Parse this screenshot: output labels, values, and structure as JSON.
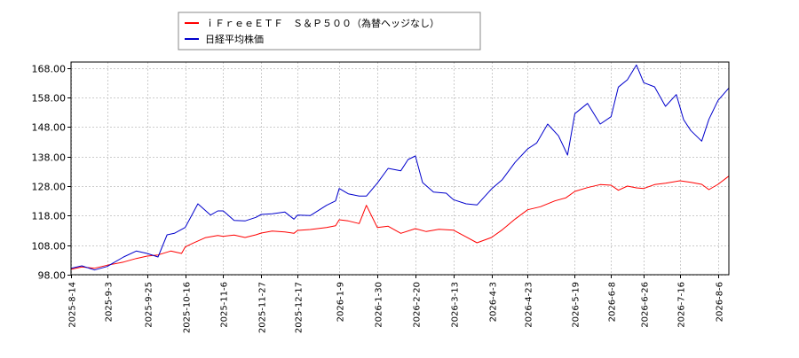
{
  "chart_data": {
    "type": "line",
    "title": "",
    "xlabel": "",
    "ylabel": "",
    "ylim": [
      98,
      170
    ],
    "y_ticks": [
      98,
      108,
      118,
      128,
      138,
      148,
      158,
      168
    ],
    "y_tick_labels": [
      "98.00",
      "108.00",
      "118.00",
      "128.00",
      "138.00",
      "148.00",
      "158.00",
      "168.00"
    ],
    "x_range": [
      "2025-08-14",
      "2026-08-12"
    ],
    "x_ticks": [
      "2025-08-14",
      "2025-09-03",
      "2025-09-25",
      "2025-10-16",
      "2025-11-06",
      "2025-11-27",
      "2025-12-17",
      "2026-01-09",
      "2026-01-30",
      "2026-02-20",
      "2026-03-13",
      "2026-04-03",
      "2026-04-23",
      "2026-05-19",
      "2026-06-08",
      "2026-06-26",
      "2026-07-16",
      "2026-08-06"
    ],
    "x_tick_labels": [
      "2025-8-14",
      "2025-9-3",
      "2025-9-25",
      "2025-10-16",
      "2025-11-6",
      "2025-11-27",
      "2025-12-17",
      "2026-1-9",
      "2026-1-30",
      "2026-2-20",
      "2026-3-13",
      "2026-4-3",
      "2026-4-23",
      "2026-5-19",
      "2026-6-8",
      "2026-6-26",
      "2026-7-16",
      "2026-8-6"
    ],
    "grid": true,
    "legend_position": "top-left",
    "series": [
      {
        "name": "ｉＦｒｅｅＥＴＦ　Ｓ＆Ｐ５００（為替ヘッジなし）",
        "color": "#ff0000",
        "x": [
          "2025-08-14",
          "2025-08-20",
          "2025-08-27",
          "2025-09-03",
          "2025-09-12",
          "2025-09-19",
          "2025-09-25",
          "2025-10-01",
          "2025-10-08",
          "2025-10-14",
          "2025-10-16",
          "2025-10-20",
          "2025-10-27",
          "2025-11-03",
          "2025-11-06",
          "2025-11-12",
          "2025-11-18",
          "2025-11-24",
          "2025-11-27",
          "2025-12-03",
          "2025-12-10",
          "2025-12-15",
          "2025-12-17",
          "2025-12-24",
          "2026-01-02",
          "2026-01-07",
          "2026-01-09",
          "2026-01-14",
          "2026-01-20",
          "2026-01-24",
          "2026-01-30",
          "2026-02-05",
          "2026-02-12",
          "2026-02-20",
          "2026-02-26",
          "2026-03-05",
          "2026-03-13",
          "2026-03-20",
          "2026-03-26",
          "2026-04-03",
          "2026-04-09",
          "2026-04-16",
          "2026-04-23",
          "2026-04-30",
          "2026-05-08",
          "2026-05-14",
          "2026-05-19",
          "2026-05-26",
          "2026-06-02",
          "2026-06-08",
          "2026-06-12",
          "2026-06-17",
          "2026-06-22",
          "2026-06-26",
          "2026-07-02",
          "2026-07-08",
          "2026-07-16",
          "2026-07-22",
          "2026-07-28",
          "2026-08-01",
          "2026-08-06",
          "2026-08-12"
        ],
        "y": [
          99.8,
          100.6,
          100.2,
          101.2,
          102.3,
          103.5,
          104.3,
          104.7,
          106.0,
          105.2,
          107.4,
          108.6,
          110.5,
          111.3,
          111.0,
          111.4,
          110.6,
          111.5,
          112.1,
          112.8,
          112.5,
          112.0,
          113.0,
          113.3,
          114.0,
          114.6,
          116.6,
          116.2,
          115.3,
          121.5,
          114.0,
          114.4,
          112.0,
          113.6,
          112.6,
          113.4,
          113.1,
          110.8,
          108.8,
          110.6,
          113.2,
          116.8,
          120.0,
          121.0,
          123.0,
          124.0,
          126.2,
          127.5,
          128.5,
          128.3,
          126.6,
          128.0,
          127.4,
          127.2,
          128.5,
          129.0,
          129.8,
          129.3,
          128.6,
          126.8,
          128.6,
          131.4
        ]
      },
      {
        "name": "日経平均株価",
        "color": "#0000cc",
        "x": [
          "2025-08-14",
          "2025-08-20",
          "2025-08-27",
          "2025-09-03",
          "2025-09-12",
          "2025-09-19",
          "2025-09-25",
          "2025-10-01",
          "2025-10-06",
          "2025-10-10",
          "2025-10-16",
          "2025-10-23",
          "2025-10-30",
          "2025-11-03",
          "2025-11-06",
          "2025-11-12",
          "2025-11-18",
          "2025-11-24",
          "2025-11-27",
          "2025-12-03",
          "2025-12-10",
          "2025-12-15",
          "2025-12-17",
          "2025-12-24",
          "2026-01-02",
          "2026-01-07",
          "2026-01-09",
          "2026-01-14",
          "2026-01-20",
          "2026-01-24",
          "2026-01-30",
          "2026-02-05",
          "2026-02-12",
          "2026-02-16",
          "2026-02-20",
          "2026-02-24",
          "2026-03-02",
          "2026-03-09",
          "2026-03-13",
          "2026-03-20",
          "2026-03-26",
          "2026-04-03",
          "2026-04-09",
          "2026-04-16",
          "2026-04-23",
          "2026-04-28",
          "2026-05-04",
          "2026-05-10",
          "2026-05-15",
          "2026-05-19",
          "2026-05-26",
          "2026-06-02",
          "2026-06-08",
          "2026-06-12",
          "2026-06-17",
          "2026-06-22",
          "2026-06-26",
          "2026-07-02",
          "2026-07-08",
          "2026-07-14",
          "2026-07-18",
          "2026-07-22",
          "2026-07-28",
          "2026-08-01",
          "2026-08-06",
          "2026-08-12"
        ],
        "y": [
          100.2,
          101.0,
          99.6,
          100.8,
          104.0,
          106.0,
          105.2,
          104.0,
          111.5,
          112.0,
          114.0,
          122.0,
          118.2,
          119.6,
          119.6,
          116.4,
          116.2,
          117.4,
          118.4,
          118.6,
          119.2,
          116.8,
          118.2,
          118.0,
          121.5,
          123.0,
          127.2,
          125.4,
          124.6,
          124.6,
          129.0,
          134.0,
          133.2,
          137.0,
          138.2,
          129.2,
          126.0,
          125.6,
          123.4,
          122.0,
          121.6,
          127.0,
          130.2,
          136.0,
          140.6,
          142.6,
          149.0,
          145.0,
          138.5,
          152.5,
          156.0,
          149.0,
          151.5,
          161.5,
          164.0,
          169.0,
          163.0,
          161.6,
          155.0,
          159.0,
          150.5,
          146.8,
          143.2,
          150.6,
          157.0,
          161.2
        ]
      }
    ]
  }
}
